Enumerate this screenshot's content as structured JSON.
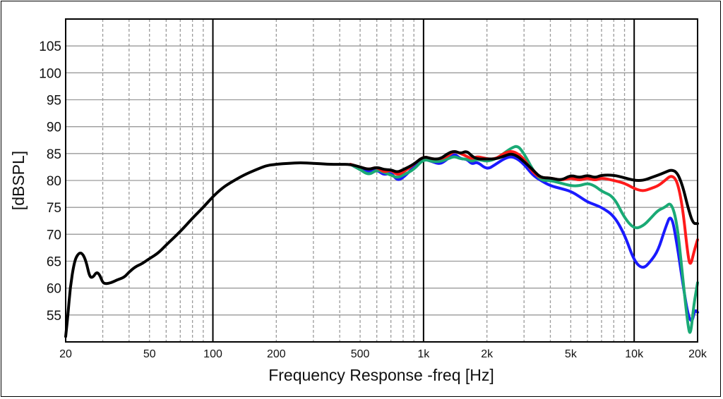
{
  "chart_data": {
    "type": "line",
    "title": "",
    "xlabel": "Frequency Response -freq [Hz]",
    "ylabel": "[dBSPL]",
    "xscale": "log",
    "xlim": [
      20,
      20000
    ],
    "ylim": [
      50,
      110
    ],
    "grid": true,
    "x_ticks": [
      20,
      50,
      100,
      200,
      500,
      1000,
      2000,
      5000,
      10000,
      20000
    ],
    "x_tick_labels": [
      "20",
      "50",
      "100",
      "200",
      "500",
      "1k",
      "2k",
      "5k",
      "10k",
      "20k"
    ],
    "y_ticks": [
      55,
      60,
      65,
      70,
      75,
      80,
      85,
      90,
      95,
      100,
      105
    ],
    "y_tick_labels": [
      "55",
      "60",
      "65",
      "70",
      "75",
      "80",
      "85",
      "90",
      "95",
      "100",
      "105"
    ],
    "series": [
      {
        "color": "#1a1aff",
        "points": [
          [
            450,
            83
          ],
          [
            500,
            82
          ],
          [
            550,
            81.5
          ],
          [
            600,
            82
          ],
          [
            650,
            81
          ],
          [
            700,
            81.5
          ],
          [
            750,
            80
          ],
          [
            800,
            80.5
          ],
          [
            900,
            82.5
          ],
          [
            1000,
            84
          ],
          [
            1100,
            83.5
          ],
          [
            1200,
            83
          ],
          [
            1300,
            84
          ],
          [
            1400,
            85
          ],
          [
            1500,
            84
          ],
          [
            1600,
            84
          ],
          [
            1700,
            83
          ],
          [
            1800,
            83.5
          ],
          [
            2000,
            82
          ],
          [
            2200,
            83
          ],
          [
            2400,
            84
          ],
          [
            2600,
            84.5
          ],
          [
            2800,
            84
          ],
          [
            3000,
            83
          ],
          [
            3300,
            81
          ],
          [
            3600,
            80
          ],
          [
            4000,
            79
          ],
          [
            4500,
            78.5
          ],
          [
            5000,
            78
          ],
          [
            5500,
            77
          ],
          [
            6000,
            76
          ],
          [
            6500,
            75.5
          ],
          [
            7000,
            75
          ],
          [
            8000,
            73.5
          ],
          [
            9000,
            70
          ],
          [
            10000,
            65
          ],
          [
            11000,
            63.5
          ],
          [
            12000,
            65
          ],
          [
            13000,
            67
          ],
          [
            14000,
            71
          ],
          [
            15000,
            74
          ],
          [
            16000,
            68
          ],
          [
            17000,
            61
          ],
          [
            18000,
            55
          ],
          [
            18800,
            53.5
          ],
          [
            19400,
            56
          ],
          [
            20000,
            55.5
          ]
        ]
      },
      {
        "color": "#1aaa75",
        "points": [
          [
            450,
            83
          ],
          [
            500,
            82
          ],
          [
            550,
            81
          ],
          [
            600,
            82
          ],
          [
            650,
            81.5
          ],
          [
            700,
            81
          ],
          [
            750,
            80.5
          ],
          [
            800,
            81
          ],
          [
            900,
            82
          ],
          [
            1000,
            84
          ],
          [
            1100,
            83.5
          ],
          [
            1200,
            83.5
          ],
          [
            1300,
            84
          ],
          [
            1400,
            84.5
          ],
          [
            1500,
            84
          ],
          [
            1600,
            84
          ],
          [
            1700,
            83.5
          ],
          [
            1800,
            84
          ],
          [
            2000,
            83.5
          ],
          [
            2200,
            84
          ],
          [
            2400,
            85
          ],
          [
            2600,
            86
          ],
          [
            2800,
            86.5
          ],
          [
            3000,
            85
          ],
          [
            3300,
            82
          ],
          [
            3600,
            80
          ],
          [
            4000,
            80
          ],
          [
            4500,
            79.5
          ],
          [
            5000,
            79
          ],
          [
            5500,
            79
          ],
          [
            6000,
            79.5
          ],
          [
            6500,
            79
          ],
          [
            7000,
            78
          ],
          [
            8000,
            77
          ],
          [
            9000,
            73
          ],
          [
            10000,
            71
          ],
          [
            11000,
            71.5
          ],
          [
            12000,
            73
          ],
          [
            13000,
            74.5
          ],
          [
            14000,
            75
          ],
          [
            15000,
            76
          ],
          [
            16000,
            72
          ],
          [
            17000,
            62
          ],
          [
            18000,
            53
          ],
          [
            18500,
            51
          ],
          [
            19200,
            57
          ],
          [
            20000,
            61
          ]
        ]
      },
      {
        "color": "#ff1a1a",
        "points": [
          [
            450,
            83
          ],
          [
            500,
            82.5
          ],
          [
            550,
            82
          ],
          [
            600,
            82.5
          ],
          [
            650,
            81.5
          ],
          [
            700,
            82
          ],
          [
            750,
            81
          ],
          [
            800,
            81.5
          ],
          [
            900,
            83
          ],
          [
            1000,
            84.5
          ],
          [
            1100,
            84
          ],
          [
            1200,
            84
          ],
          [
            1300,
            84.5
          ],
          [
            1400,
            85.5
          ],
          [
            1500,
            85
          ],
          [
            1600,
            84.5
          ],
          [
            1700,
            84
          ],
          [
            1800,
            84.5
          ],
          [
            2000,
            84
          ],
          [
            2200,
            84
          ],
          [
            2400,
            85
          ],
          [
            2600,
            85.5
          ],
          [
            2800,
            85
          ],
          [
            3000,
            84
          ],
          [
            3300,
            81.5
          ],
          [
            3600,
            80.5
          ],
          [
            4000,
            80.5
          ],
          [
            4500,
            80
          ],
          [
            5000,
            80.5
          ],
          [
            5500,
            80
          ],
          [
            6000,
            80.5
          ],
          [
            6500,
            80
          ],
          [
            7000,
            80.5
          ],
          [
            8000,
            80
          ],
          [
            9000,
            79.5
          ],
          [
            10000,
            78.5
          ],
          [
            11000,
            78
          ],
          [
            12000,
            78.5
          ],
          [
            13000,
            79
          ],
          [
            14000,
            80
          ],
          [
            15000,
            81
          ],
          [
            16000,
            80
          ],
          [
            17000,
            75
          ],
          [
            18000,
            66
          ],
          [
            18500,
            64
          ],
          [
            19300,
            67
          ],
          [
            20000,
            69
          ]
        ]
      },
      {
        "color": "#000000",
        "points": [
          [
            20,
            51
          ],
          [
            20.5,
            55
          ],
          [
            21,
            60
          ],
          [
            22,
            65
          ],
          [
            23,
            66.5
          ],
          [
            24,
            66.5
          ],
          [
            25,
            65
          ],
          [
            26,
            62
          ],
          [
            27,
            62
          ],
          [
            28,
            63
          ],
          [
            29,
            62.5
          ],
          [
            30,
            61
          ],
          [
            31,
            60.8
          ],
          [
            33,
            61
          ],
          [
            35,
            61.5
          ],
          [
            38,
            62
          ],
          [
            40,
            63
          ],
          [
            43,
            64
          ],
          [
            46,
            64.5
          ],
          [
            50,
            65.5
          ],
          [
            55,
            66.5
          ],
          [
            60,
            68
          ],
          [
            70,
            70.5
          ],
          [
            80,
            73
          ],
          [
            90,
            75
          ],
          [
            100,
            77
          ],
          [
            110,
            78.5
          ],
          [
            120,
            79.5
          ],
          [
            140,
            81
          ],
          [
            160,
            82
          ],
          [
            180,
            82.8
          ],
          [
            200,
            83
          ],
          [
            230,
            83.2
          ],
          [
            260,
            83.3
          ],
          [
            300,
            83.2
          ],
          [
            350,
            83
          ],
          [
            400,
            83
          ],
          [
            450,
            83
          ],
          [
            500,
            82.5
          ],
          [
            550,
            82
          ],
          [
            600,
            82.5
          ],
          [
            650,
            82
          ],
          [
            700,
            82
          ],
          [
            750,
            81.5
          ],
          [
            800,
            82
          ],
          [
            900,
            83
          ],
          [
            1000,
            84.5
          ],
          [
            1100,
            84
          ],
          [
            1200,
            84
          ],
          [
            1300,
            85
          ],
          [
            1400,
            85.5
          ],
          [
            1500,
            85
          ],
          [
            1600,
            85.5
          ],
          [
            1700,
            84.5
          ],
          [
            1800,
            84
          ],
          [
            2000,
            84
          ],
          [
            2200,
            84
          ],
          [
            2400,
            84.5
          ],
          [
            2600,
            85
          ],
          [
            2800,
            84.5
          ],
          [
            3000,
            83.5
          ],
          [
            3300,
            82
          ],
          [
            3600,
            80.5
          ],
          [
            4000,
            80.5
          ],
          [
            4500,
            80
          ],
          [
            5000,
            81
          ],
          [
            5500,
            80.5
          ],
          [
            6000,
            81
          ],
          [
            6500,
            80.5
          ],
          [
            7000,
            81
          ],
          [
            8000,
            81
          ],
          [
            9000,
            80.5
          ],
          [
            10000,
            80
          ],
          [
            11000,
            80
          ],
          [
            12000,
            80.5
          ],
          [
            13000,
            81
          ],
          [
            14000,
            81.5
          ],
          [
            15000,
            82
          ],
          [
            16000,
            81.5
          ],
          [
            17000,
            79
          ],
          [
            18000,
            75
          ],
          [
            19000,
            72
          ],
          [
            20000,
            72
          ]
        ]
      }
    ]
  }
}
